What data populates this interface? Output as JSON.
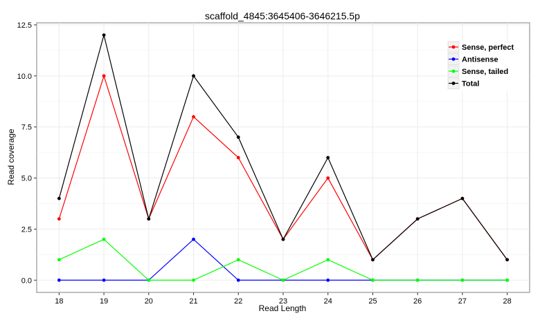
{
  "chart_data": {
    "type": "line",
    "title": "scaffold_4845:3645406-3646215.5p",
    "xlabel": "Read Length",
    "ylabel": "Read coverage",
    "x": [
      18,
      19,
      20,
      21,
      22,
      23,
      24,
      25,
      26,
      27,
      28
    ],
    "xlim": [
      17.5,
      28.5
    ],
    "ylim": [
      -0.6,
      12.6
    ],
    "yticks": [
      0.0,
      2.5,
      5.0,
      7.5,
      10.0,
      12.5
    ],
    "ytick_labels": [
      "0.0",
      "2.5",
      "5.0",
      "7.5",
      "10.0",
      "12.5"
    ],
    "grid": true,
    "legend_position": "top-right",
    "series": [
      {
        "name": "Sense, perfect",
        "color": "#ff0000",
        "values": [
          3,
          10,
          3,
          8,
          6,
          2,
          5,
          1,
          3,
          4,
          1
        ]
      },
      {
        "name": "Antisense",
        "color": "#0000ff",
        "values": [
          0,
          0,
          0,
          2,
          0,
          0,
          0,
          0,
          0,
          0,
          0
        ]
      },
      {
        "name": "Sense, tailed",
        "color": "#00ff00",
        "values": [
          1,
          2,
          0,
          0,
          1,
          0,
          1,
          0,
          0,
          0,
          0
        ]
      },
      {
        "name": "Total",
        "color": "#000000",
        "values": [
          4,
          12,
          3,
          10,
          7,
          2,
          6,
          1,
          3,
          4,
          1
        ]
      }
    ]
  }
}
